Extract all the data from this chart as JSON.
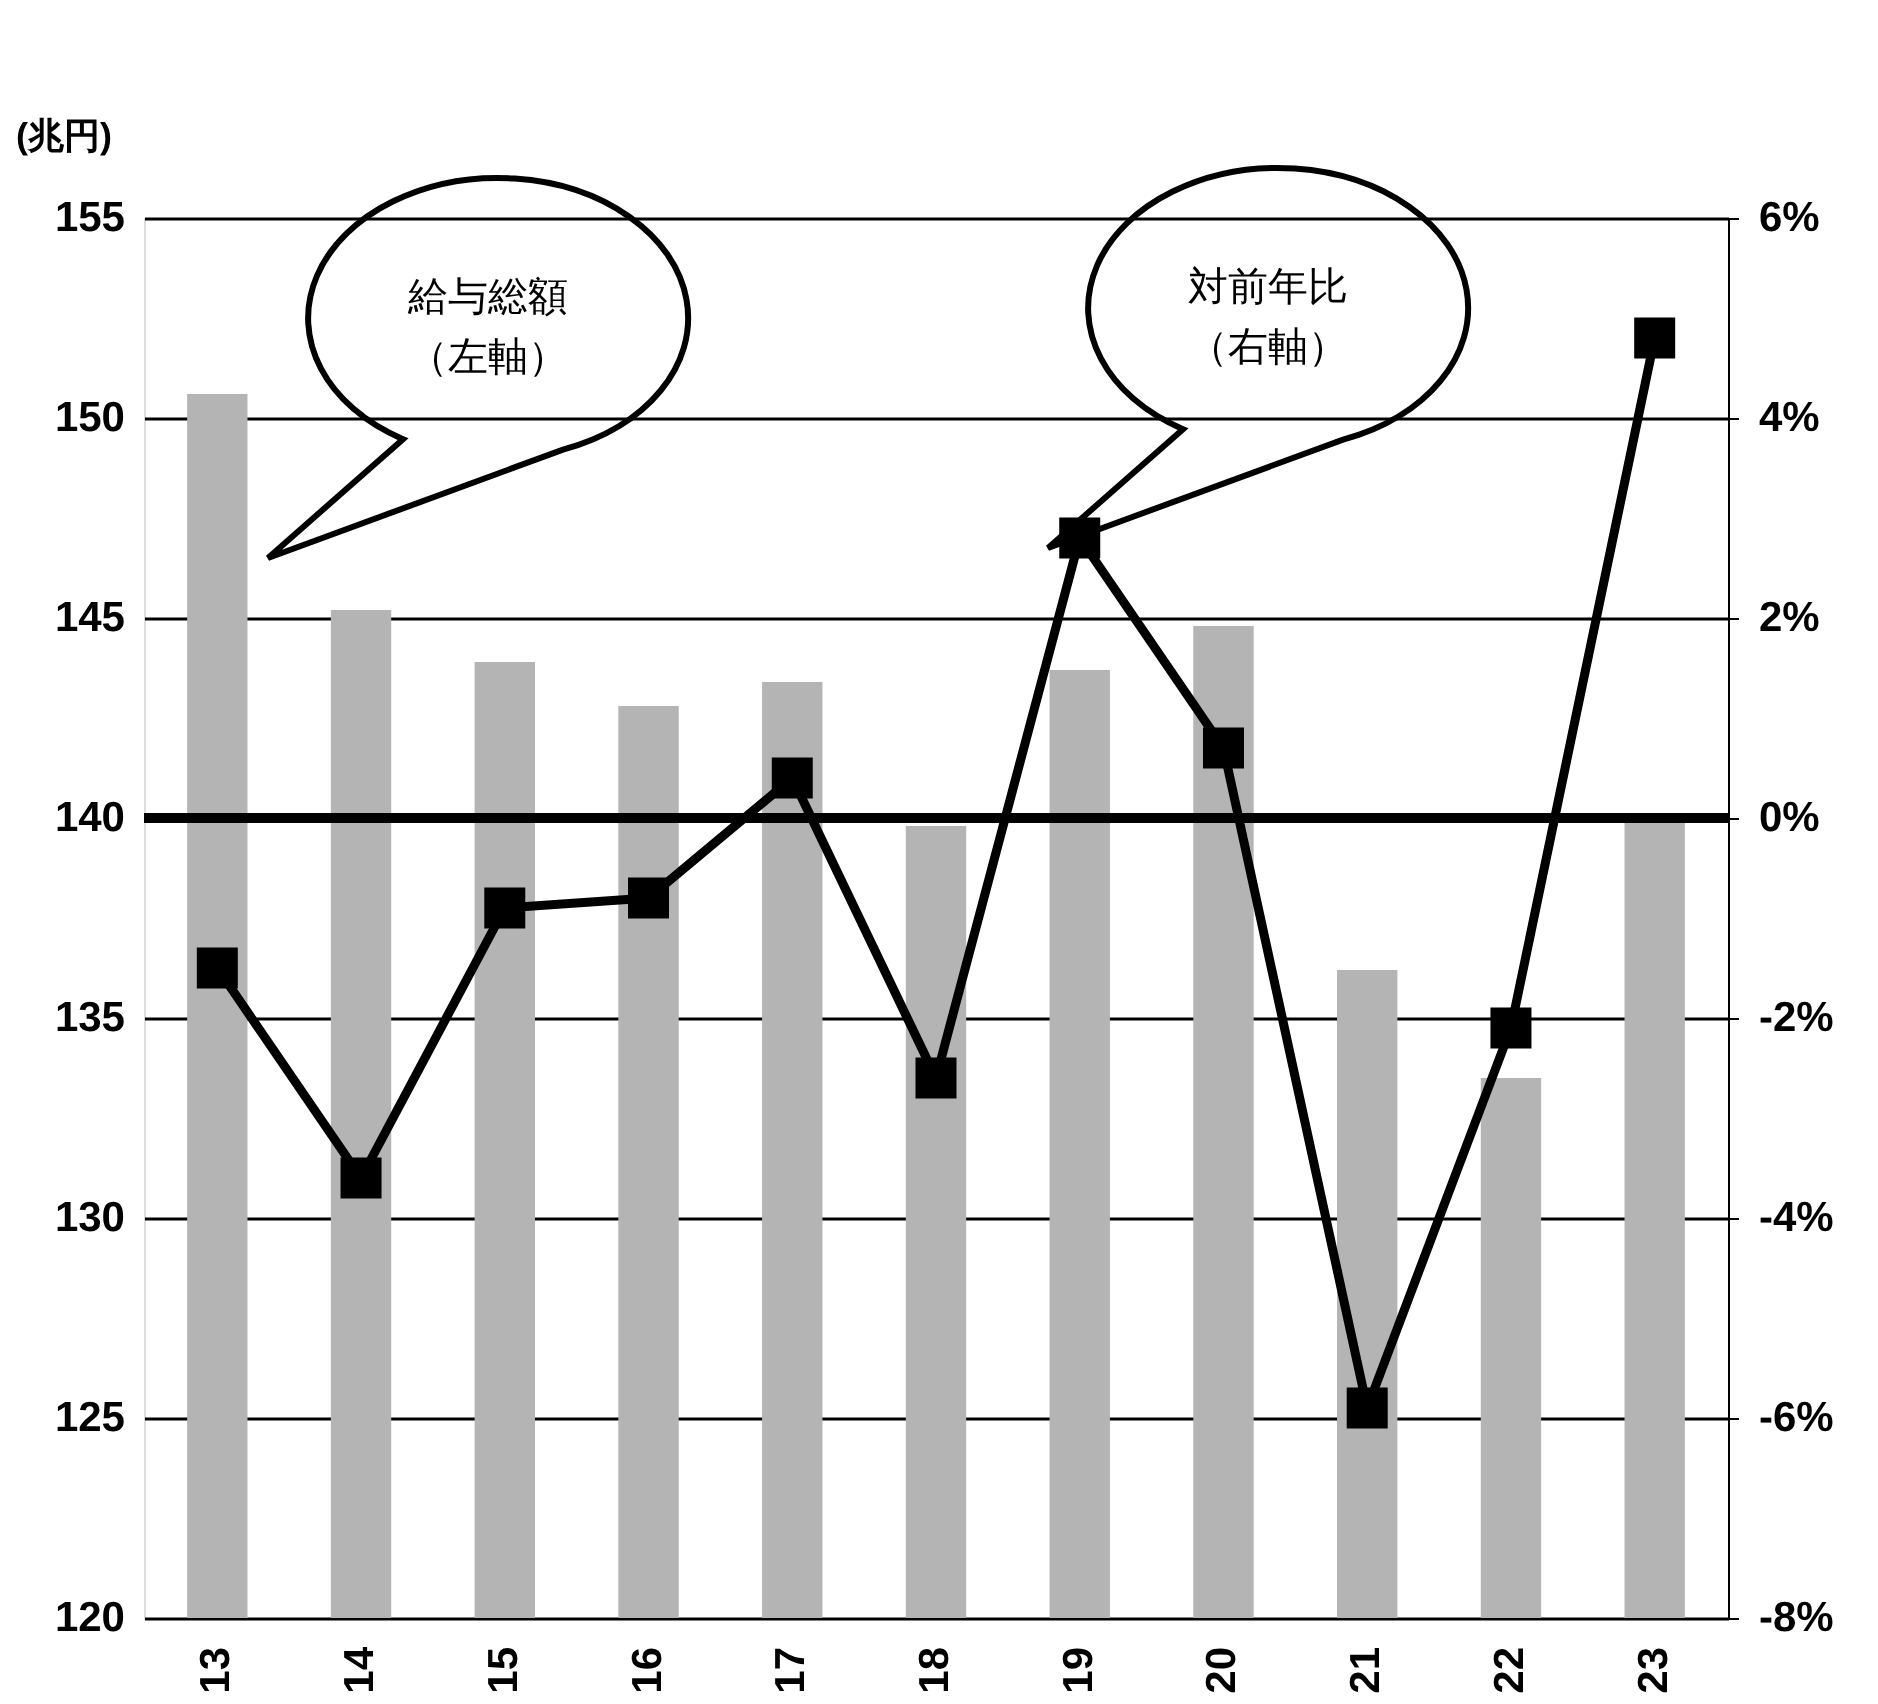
{
  "chart_data": {
    "type": "bar",
    "ylabel": "(兆円)",
    "categories": [
      "13",
      "14",
      "15",
      "16",
      "17",
      "18",
      "19",
      "20",
      "21",
      "22",
      "23"
    ],
    "series": [
      {
        "color": "#b4b4b4",
        "values": [
          150.6,
          145.2,
          143.9,
          142.8,
          143.4,
          139.8,
          143.7,
          144.8,
          136.2,
          133.5,
          139.9
        ]
      },
      {
        "type": "line",
        "axis": "y2",
        "color": "#000000",
        "marker": "square",
        "line_style": "solid",
        "values": [
          -1.5,
          -3.6,
          -0.9,
          -0.8,
          0.4,
          -2.6,
          2.8,
          0.7,
          -5.9,
          -2.1,
          4.8
        ]
      }
    ],
    "ylim": [
      120,
      155
    ],
    "yticks": [
      120,
      125,
      130,
      135,
      140,
      145,
      150,
      155
    ],
    "y2lim": [
      -8,
      6
    ],
    "y2ticks": [
      {
        "value": -8,
        "label": "-8%"
      },
      {
        "value": -6,
        "label": "-6%"
      },
      {
        "value": -4,
        "label": "-4%"
      },
      {
        "value": -2,
        "label": "-2%"
      },
      {
        "value": 0,
        "label": "0%"
      },
      {
        "value": 2,
        "label": "2%"
      },
      {
        "value": 4,
        "label": "4%"
      },
      {
        "value": 6,
        "label": "6%"
      }
    ],
    "ref_lines": [
      {
        "axis": "y",
        "value": 140,
        "color": "#000000"
      }
    ],
    "annotations": [
      "給与総額（左軸）",
      "対前年比（右軸）"
    ],
    "grid": "y",
    "legend": false
  }
}
